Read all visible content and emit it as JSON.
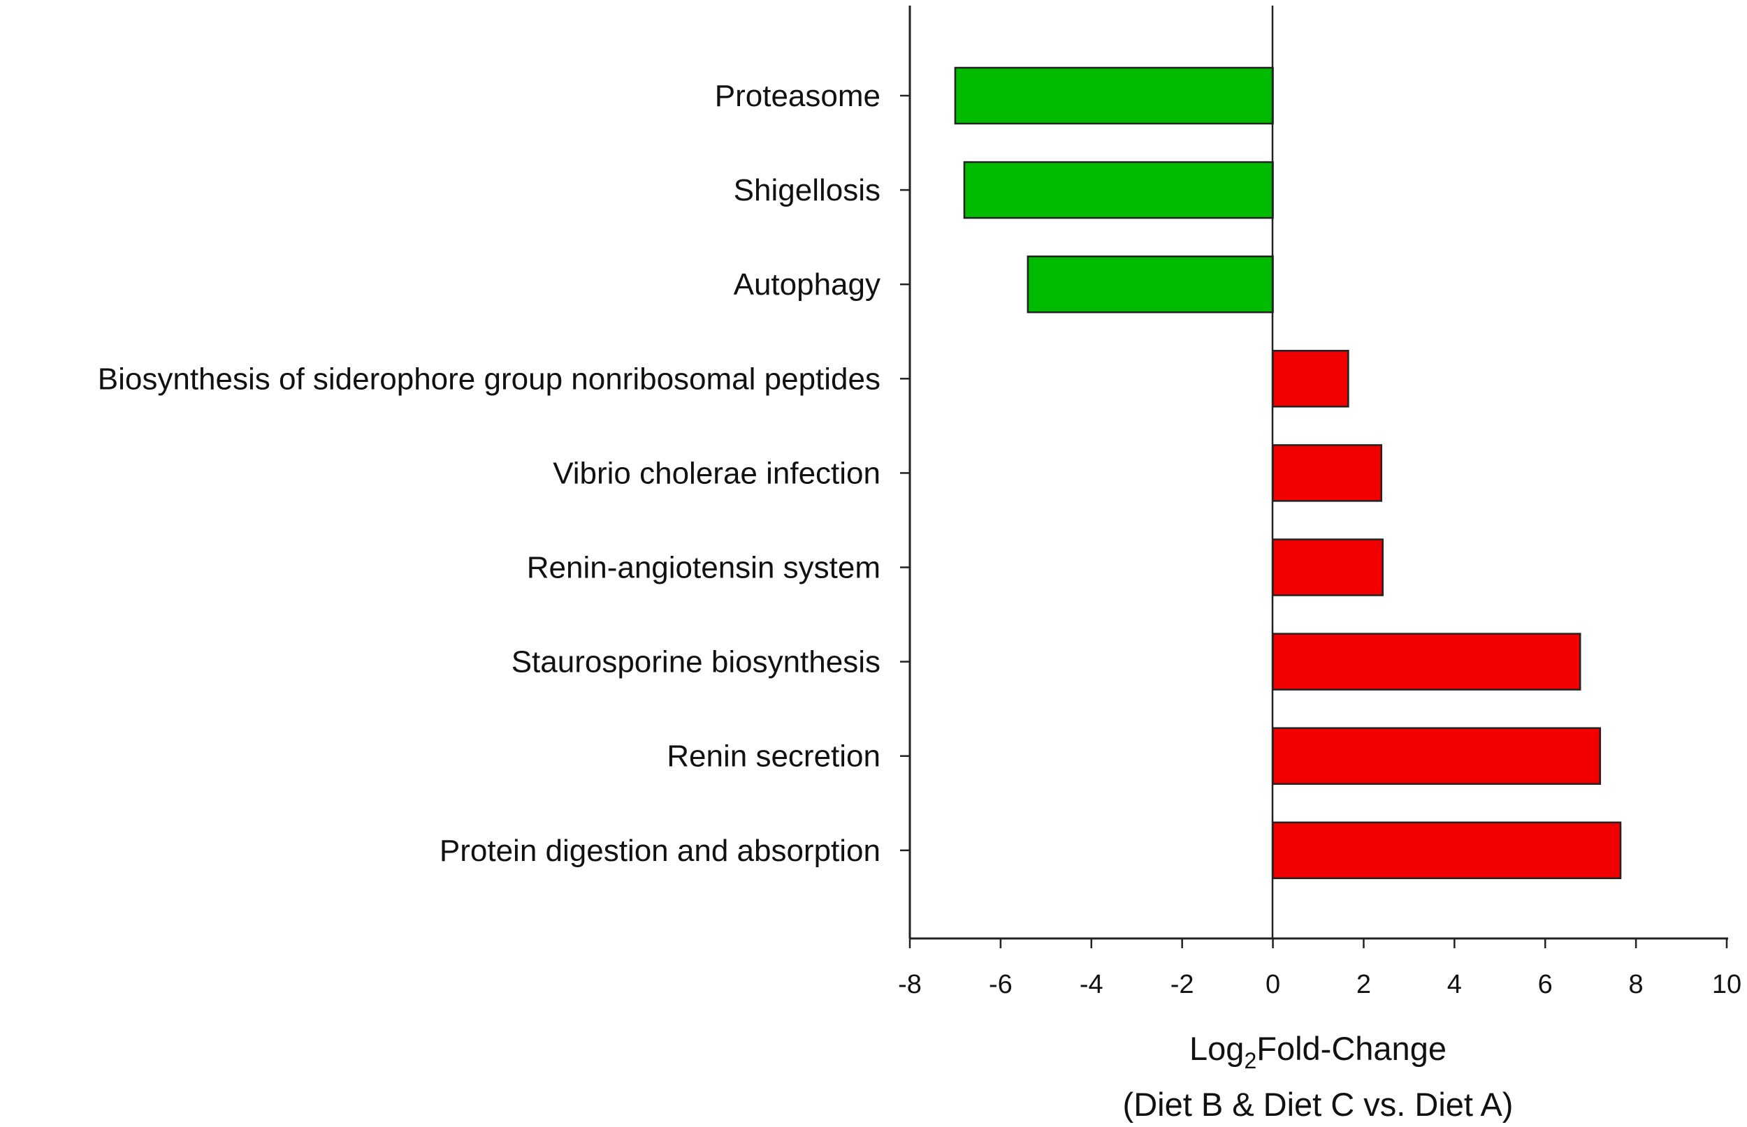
{
  "chart_data": {
    "type": "bar",
    "orientation": "horizontal",
    "categories": [
      "Proteasome",
      "Shigellosis",
      "Autophagy",
      "Biosynthesis of siderophore group nonribosomal peptides",
      "Vibrio cholerae infection",
      "Renin-angiotensin system",
      "Staurosporine biosynthesis",
      "Renin secretion",
      "Protein digestion and absorption"
    ],
    "values": [
      -7.0,
      -6.8,
      -5.4,
      1.66,
      2.39,
      2.42,
      6.77,
      7.21,
      7.66
    ],
    "xlabel_main": "Log",
    "xlabel_sub": "2",
    "xlabel_rest": "Fold-Change",
    "xlabel_line2": "(Diet B & Diet C vs. Diet A)",
    "xlim": [
      -8,
      10
    ],
    "xticks": [
      "-8",
      "-6",
      "-4",
      "-2",
      "0",
      "2",
      "4",
      "6",
      "8",
      "10"
    ],
    "grid": false,
    "colors": {
      "negative": "#00bb00",
      "positive": "#f20000",
      "outline": "#222222"
    }
  }
}
